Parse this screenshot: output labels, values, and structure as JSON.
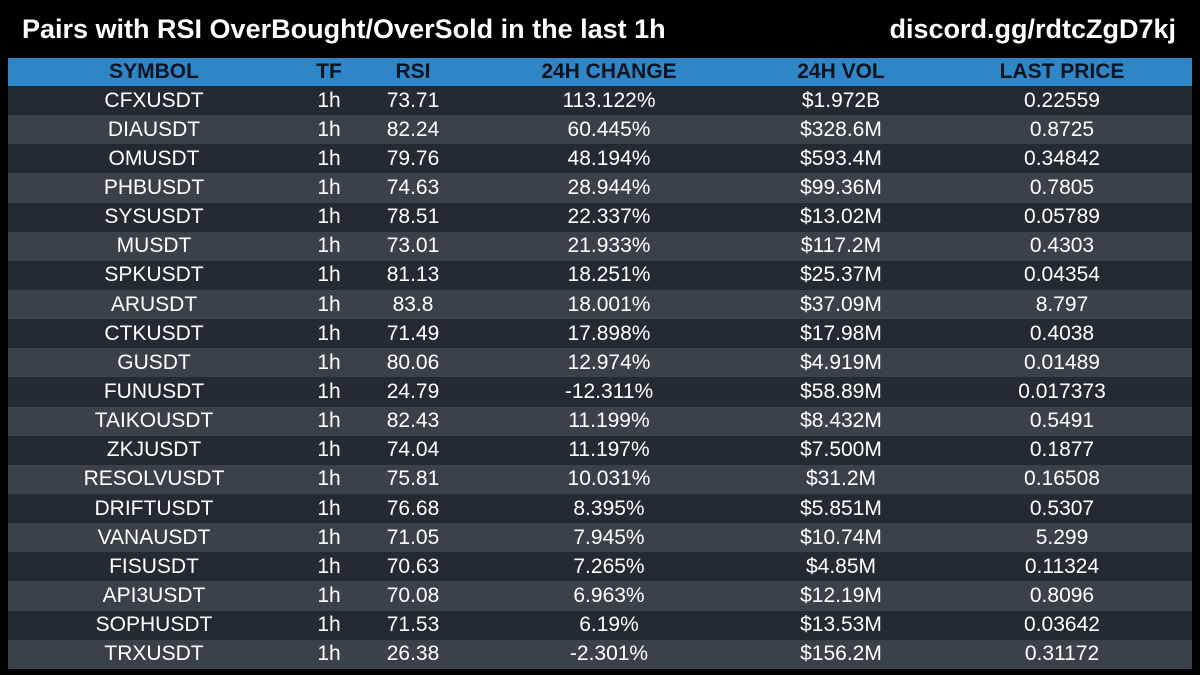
{
  "header": {
    "title": "Pairs with RSI OverBought/OverSold in the last 1h",
    "link": "discord.gg/rdtcZgD7kj"
  },
  "colors": {
    "header_row": "#2e86c6",
    "row_dark": "#232a31",
    "row_light": "#3a4148",
    "background": "#000000"
  },
  "table": {
    "columns": [
      "SYMBOL",
      "TF",
      "RSI",
      "24H CHANGE",
      "24H VOL",
      "LAST PRICE"
    ],
    "rows": [
      [
        "CFXUSDT",
        "1h",
        "73.71",
        "113.122%",
        "$1.972B",
        "0.22559"
      ],
      [
        "DIAUSDT",
        "1h",
        "82.24",
        "60.445%",
        "$328.6M",
        "0.8725"
      ],
      [
        "OMUSDT",
        "1h",
        "79.76",
        "48.194%",
        "$593.4M",
        "0.34842"
      ],
      [
        "PHBUSDT",
        "1h",
        "74.63",
        "28.944%",
        "$99.36M",
        "0.7805"
      ],
      [
        "SYSUSDT",
        "1h",
        "78.51",
        "22.337%",
        "$13.02M",
        "0.05789"
      ],
      [
        "MUSDT",
        "1h",
        "73.01",
        "21.933%",
        "$117.2M",
        "0.4303"
      ],
      [
        "SPKUSDT",
        "1h",
        "81.13",
        "18.251%",
        "$25.37M",
        "0.04354"
      ],
      [
        "ARUSDT",
        "1h",
        "83.8",
        "18.001%",
        "$37.09M",
        "8.797"
      ],
      [
        "CTKUSDT",
        "1h",
        "71.49",
        "17.898%",
        "$17.98M",
        "0.4038"
      ],
      [
        "GUSDT",
        "1h",
        "80.06",
        "12.974%",
        "$4.919M",
        "0.01489"
      ],
      [
        "FUNUSDT",
        "1h",
        "24.79",
        "-12.311%",
        "$58.89M",
        "0.017373"
      ],
      [
        "TAIKOUSDT",
        "1h",
        "82.43",
        "11.199%",
        "$8.432M",
        "0.5491"
      ],
      [
        "ZKJUSDT",
        "1h",
        "74.04",
        "11.197%",
        "$7.500M",
        "0.1877"
      ],
      [
        "RESOLVUSDT",
        "1h",
        "75.81",
        "10.031%",
        "$31.2M",
        "0.16508"
      ],
      [
        "DRIFTUSDT",
        "1h",
        "76.68",
        "8.395%",
        "$5.851M",
        "0.5307"
      ],
      [
        "VANAUSDT",
        "1h",
        "71.05",
        "7.945%",
        "$10.74M",
        "5.299"
      ],
      [
        "FISUSDT",
        "1h",
        "70.63",
        "7.265%",
        "$4.85M",
        "0.11324"
      ],
      [
        "API3USDT",
        "1h",
        "70.08",
        "6.963%",
        "$12.19M",
        "0.8096"
      ],
      [
        "SOPHUSDT",
        "1h",
        "71.53",
        "6.19%",
        "$13.53M",
        "0.03642"
      ],
      [
        "TRXUSDT",
        "1h",
        "26.38",
        "-2.301%",
        "$156.2M",
        "0.31172"
      ]
    ]
  }
}
